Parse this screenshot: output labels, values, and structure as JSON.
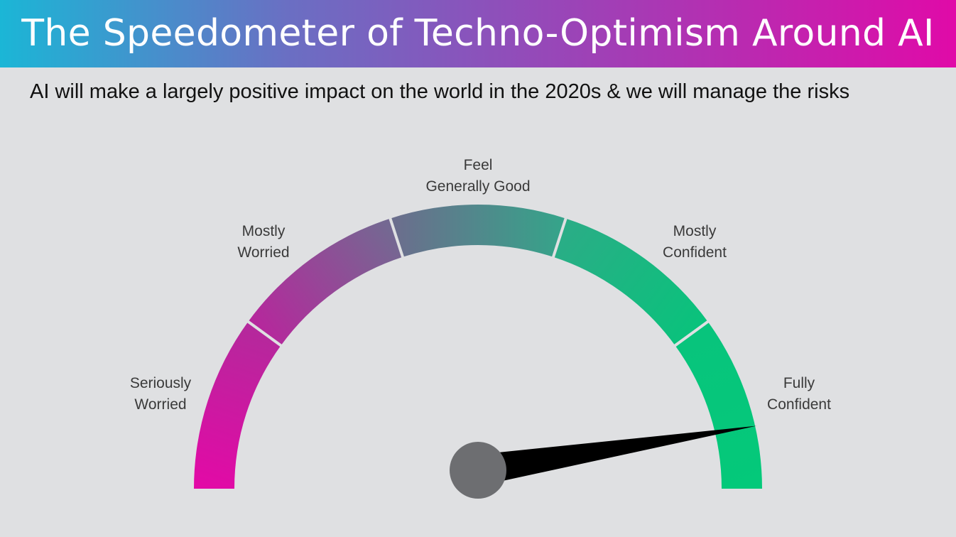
{
  "header": {
    "title": "The Speedometer of Techno-Optimism Around AI",
    "subtitle": "AI will make a largely positive impact on the world in the 2020s & we will manage the risks"
  },
  "gauge": {
    "segments": [
      {
        "line1": "Seriously",
        "line2": "Worried",
        "start_color": "#e20aa6",
        "end_color": "#b5289c"
      },
      {
        "line1": "Mostly",
        "line2": "Worried",
        "start_color": "#b5289c",
        "end_color": "#746892"
      },
      {
        "line1": "Feel",
        "line2": "Generally Good",
        "start_color": "#6b6e8d",
        "end_color": "#36a38a"
      },
      {
        "line1": "Mostly",
        "line2": "Confident",
        "start_color": "#2aad86",
        "end_color": "#0ac27c"
      },
      {
        "line1": "Fully",
        "line2": "Confident",
        "start_color": "#08c47c",
        "end_color": "#04c97a"
      }
    ],
    "needle_color": "#000000",
    "hub_color": "#6d6e71",
    "needle_level": 0.92
  }
}
